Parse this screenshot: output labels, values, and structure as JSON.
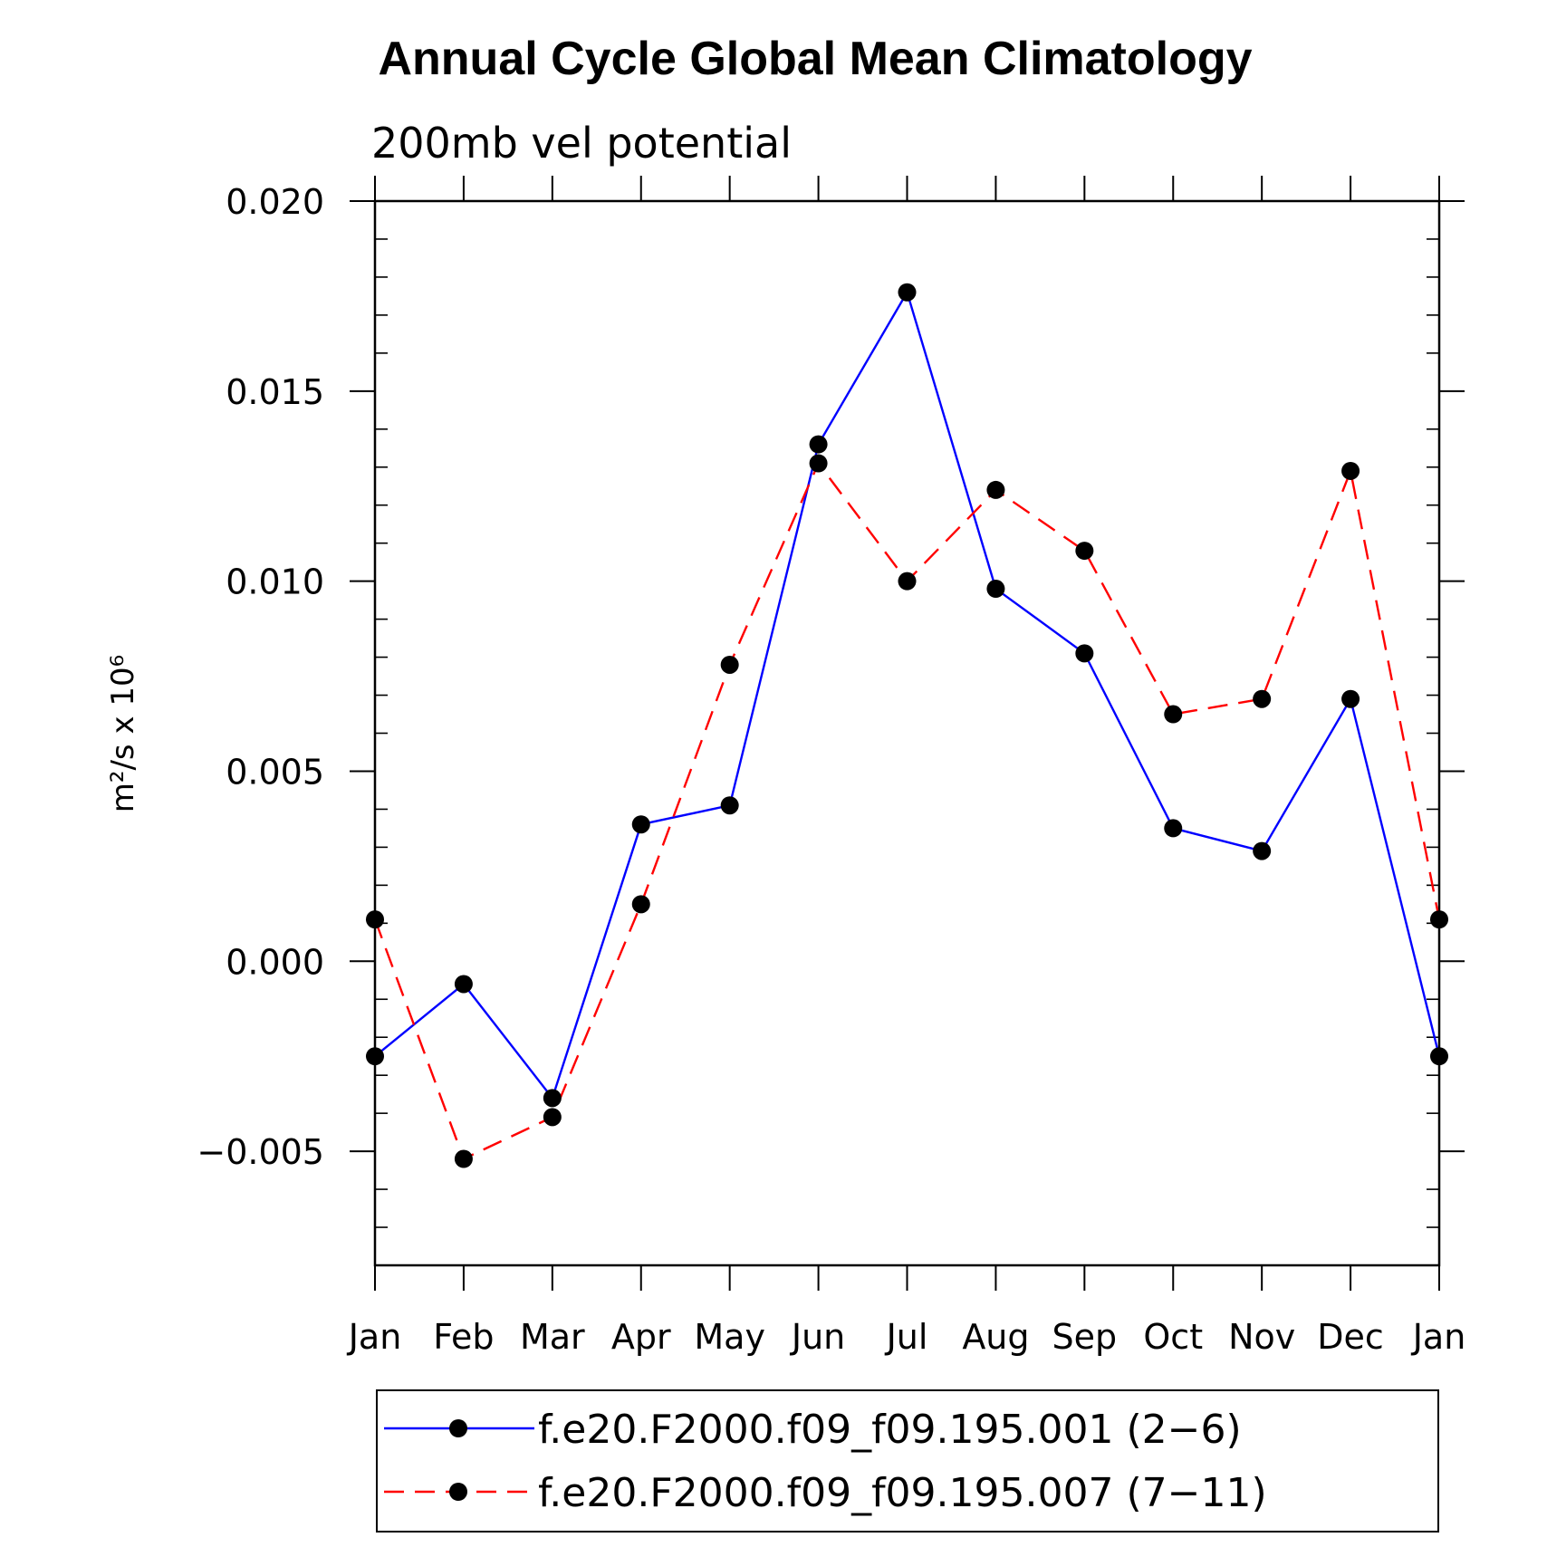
{
  "chart_data": {
    "type": "line",
    "title": "Annual Cycle Global Mean Climatology",
    "subtitle": "200mb vel potential",
    "ylabel": "m²/s x 10⁶",
    "xlabel": "",
    "categories": [
      "Jan",
      "Feb",
      "Mar",
      "Apr",
      "May",
      "Jun",
      "Jul",
      "Aug",
      "Sep",
      "Oct",
      "Nov",
      "Dec",
      "Jan"
    ],
    "ylim": [
      -0.008,
      0.02
    ],
    "yticks": [
      -0.005,
      0.0,
      0.005,
      0.01,
      0.015,
      0.02
    ],
    "ytick_labels": [
      "−0.005",
      "0.000",
      "0.005",
      "0.010",
      "0.015",
      "0.020"
    ],
    "grid": false,
    "legend_position": "bottom",
    "series": [
      {
        "name": "f.e20.F2000.f09_f09.195.001 (2−6)",
        "color": "#0000ff",
        "dash": "solid",
        "marker": "filled-circle",
        "values": [
          -0.0025,
          -0.0006,
          -0.0036,
          0.0036,
          0.0041,
          0.0136,
          0.0176,
          0.0098,
          0.0081,
          0.0035,
          0.0029,
          0.0069,
          -0.0025
        ]
      },
      {
        "name": "f.e20.F2000.f09_f09.195.007 (7−11)",
        "color": "#ff0000",
        "dash": "dashed",
        "marker": "filled-circle",
        "values": [
          0.0011,
          -0.0052,
          -0.0041,
          0.0015,
          0.0078,
          0.0131,
          0.01,
          0.0124,
          0.0108,
          0.0065,
          0.0069,
          0.0129,
          0.0011
        ]
      }
    ]
  }
}
